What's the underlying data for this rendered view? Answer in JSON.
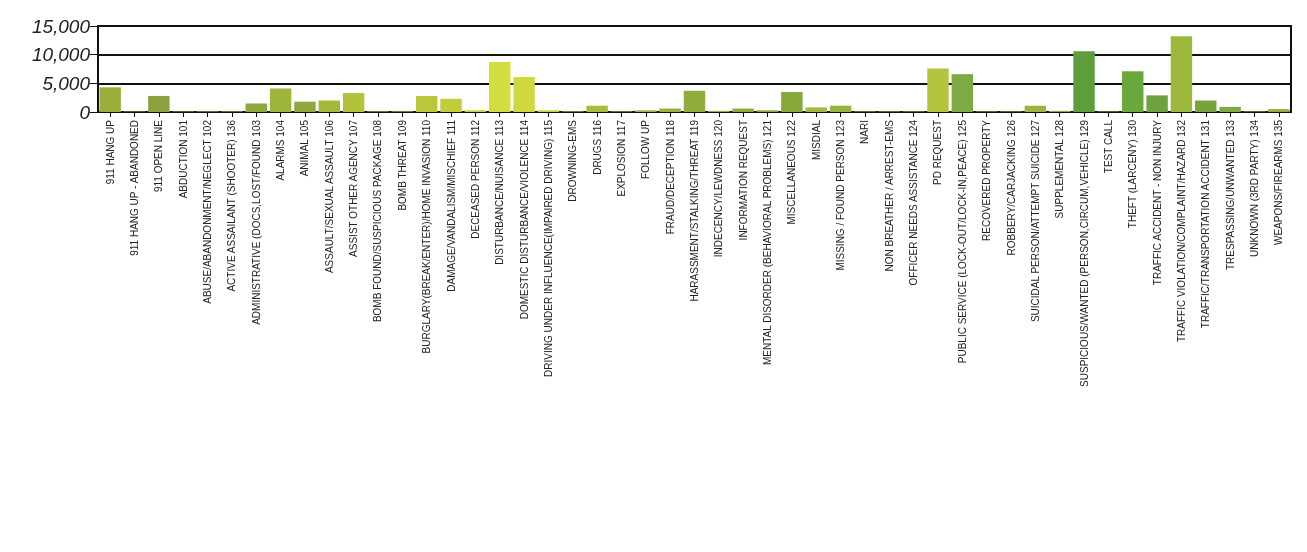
{
  "chart_data": {
    "type": "bar",
    "categories": [
      "911 HANG UP",
      "911 HANG UP - ABANDONED",
      "911 OPEN LINE",
      "ABDUCTION 101",
      "ABUSE/ABANDONMENT/NEGLECT 102",
      "ACTIVE ASSAILANT (SHOOTER) 136",
      "ADMINISTRATIVE (DOCS,LOST/FOUND 103",
      "ALARMS 104",
      "ANIMAL 105",
      "ASSAULT/SEXUAL ASSAULT 106",
      "ASSIST OTHER AGENCY 107",
      "BOMB FOUND/SUSPICIOUS PACKAGE 108",
      "BOMB THREAT 109",
      "BURGLARY(BREAK/ENTER)/HOME INVASION 110",
      "DAMAGE/VANDALISM/MISCHIEF 111",
      "DECEASED PERSON 112",
      "DISTURBANCE/NUISANCE 113",
      "DOMESTIC DISTURBANCE/VIOLENCE 114",
      "DRIVING UNDER INFLUENCE(IMPAIRED DRIVING) 115",
      "DROWNING-EMS",
      "DRUGS 116",
      "EXPLOSION 117",
      "FOLLOW UP",
      "FRAUD/DECEPTION 118",
      "HARASSMENT/STALKING/THREAT 119",
      "INDECENCY/LEWDNESS 120",
      "INFORMATION REQUEST",
      "MENTAL DISORDER (BEHAVIORAL PROBLEMS) 121",
      "MISCELLANEOUS 122",
      "MISDIAL",
      "MISSING / FOUND PERSON 123",
      "NARI",
      "NON BREATHER / ARREST-EMS",
      "OFFICER NEEDS ASSISTANCE 124",
      "PD REQUEST",
      "PUBLIC SERVICE (LOCK-OUT/LOCK-IN,PEACE) 125",
      "RECOVERED PROPERTY",
      "ROBBERY/CARJACKING 126",
      "SUICIDAL PERSON/ATTEMPT SUICIDE 127",
      "SUPPLEMENTAL 128",
      "SUSPICIOUS/WANTED (PERSON,CIRCUM,VEHICLE) 129",
      "TEST CALL",
      "THEFT (LARCENY) 130",
      "TRAFFIC ACCIDENT - NON INJURY",
      "TRAFFIC VIOLATION/COMPLAINT/HAZARD 132",
      "TRAFFIC/TRANSPORTATION ACCIDENT 131",
      "TRESPASSING/UNWANTED 133",
      "UNKNOWN (3RD PARTY) 134",
      "WEAPONS/FIREARMS 135"
    ],
    "values": [
      4300,
      100,
      2800,
      100,
      100,
      100,
      1500,
      4100,
      1800,
      2000,
      3300,
      100,
      100,
      2800,
      2300,
      300,
      8700,
      6100,
      300,
      100,
      1100,
      100,
      300,
      600,
      3700,
      200,
      600,
      300,
      3500,
      800,
      1100,
      100,
      100,
      100,
      7600,
      6600,
      100,
      100,
      1100,
      200,
      10600,
      100,
      7100,
      2900,
      13200,
      2000,
      900,
      100,
      500
    ],
    "colors": [
      "#9aae3a",
      "#8aa040",
      "#8ca040",
      "#9aa848",
      "#a0b050",
      "#a0b050",
      "#8fa83e",
      "#9cb53a",
      "#8fa842",
      "#a3b83a",
      "#b2c23a",
      "#a8b84a",
      "#b8c840",
      "#b8c83a",
      "#c0cc3a",
      "#c8d040",
      "#d4dc40",
      "#d0d840",
      "#c8d040",
      "#b0c040",
      "#a8bc40",
      "#a0b440",
      "#a0b440",
      "#98b040",
      "#8fac3c",
      "#90ac40",
      "#90ac40",
      "#8aa840",
      "#86a83a",
      "#a0b848",
      "#98b440",
      "#90a840",
      "#90a840",
      "#90a840",
      "#b4c43c",
      "#7eaa42",
      "#80a840",
      "#80a840",
      "#a4b040",
      "#8aa840",
      "#5c9e3c",
      "#70a040",
      "#6aa83e",
      "#70a040",
      "#9cb83a",
      "#78a23e",
      "#80a840",
      "#80a840",
      "#90ac40"
    ],
    "ylim": [
      0,
      15000
    ],
    "yticks": [
      0,
      {
        "value": 5000,
        "label": "5,000"
      },
      {
        "value": 10000,
        "label": "10,000"
      },
      {
        "value": 15000,
        "label": "15,000"
      }
    ],
    "grid": "y"
  }
}
